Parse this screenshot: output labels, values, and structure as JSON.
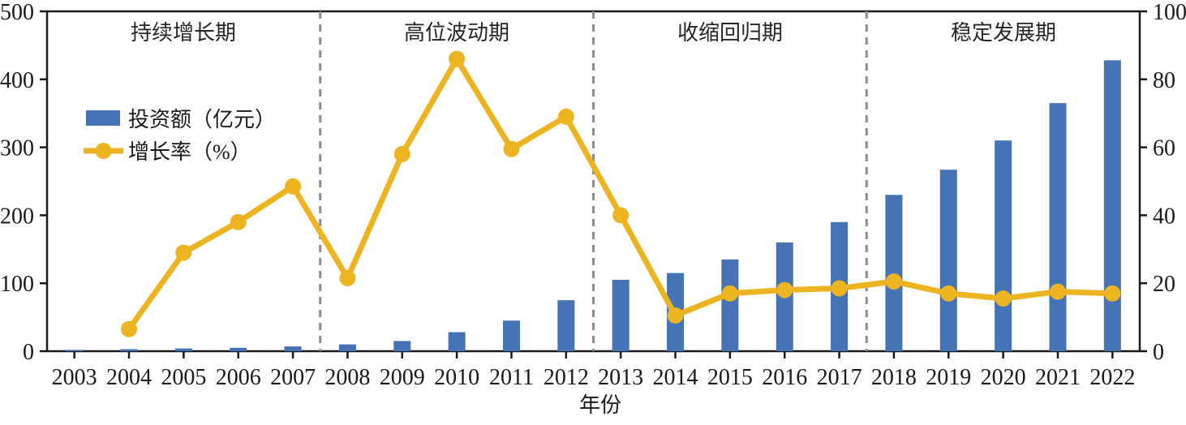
{
  "colors": {
    "bar": "#4573B5",
    "line": "#EDB422",
    "divider": "#8C8C8C",
    "axis": "#1A1A1A",
    "text": "#1A1A1A"
  },
  "legend": {
    "investment_label": "投资额（亿元）",
    "growth_label": "增长率（%）"
  },
  "chart_data": {
    "type": "bar",
    "subtype": "bar+line dual axis",
    "x": [
      "2003",
      "2004",
      "2005",
      "2006",
      "2007",
      "2008",
      "2009",
      "2010",
      "2011",
      "2012",
      "2013",
      "2014",
      "2015",
      "2016",
      "2017",
      "2018",
      "2019",
      "2020",
      "2021",
      "2022"
    ],
    "series": [
      {
        "name": "投资额（亿元）",
        "type": "bar",
        "axis": "left",
        "values": [
          2,
          3,
          4,
          5,
          7,
          10,
          15,
          28,
          45,
          75,
          105,
          115,
          135,
          160,
          190,
          230,
          267,
          310,
          365,
          428
        ]
      },
      {
        "name": "增长率（%）",
        "type": "line",
        "axis": "right",
        "values": [
          null,
          6.5,
          29,
          38,
          48.5,
          21.5,
          58,
          86,
          59.5,
          69,
          40,
          10.5,
          17,
          18,
          18.5,
          20.5,
          17,
          15.5,
          17.5,
          17
        ]
      }
    ],
    "xlabel": "年份",
    "left_axis": {
      "min": 0,
      "max": 500,
      "ticks": [
        0,
        100,
        200,
        300,
        400,
        500
      ]
    },
    "right_axis": {
      "min": 0,
      "max": 100,
      "ticks": [
        0,
        20,
        40,
        60,
        80,
        100
      ]
    },
    "grid": false,
    "legend_position": "upper-left-inside",
    "phases": [
      {
        "label": "持续增长期",
        "from": "2003",
        "to": "2007"
      },
      {
        "label": "高位波动期",
        "from": "2008",
        "to": "2012"
      },
      {
        "label": "收缩回归期",
        "from": "2013",
        "to": "2017"
      },
      {
        "label": "稳定发展期",
        "from": "2018",
        "to": "2022"
      }
    ],
    "divider_after_indices": [
      4,
      9,
      14
    ]
  }
}
